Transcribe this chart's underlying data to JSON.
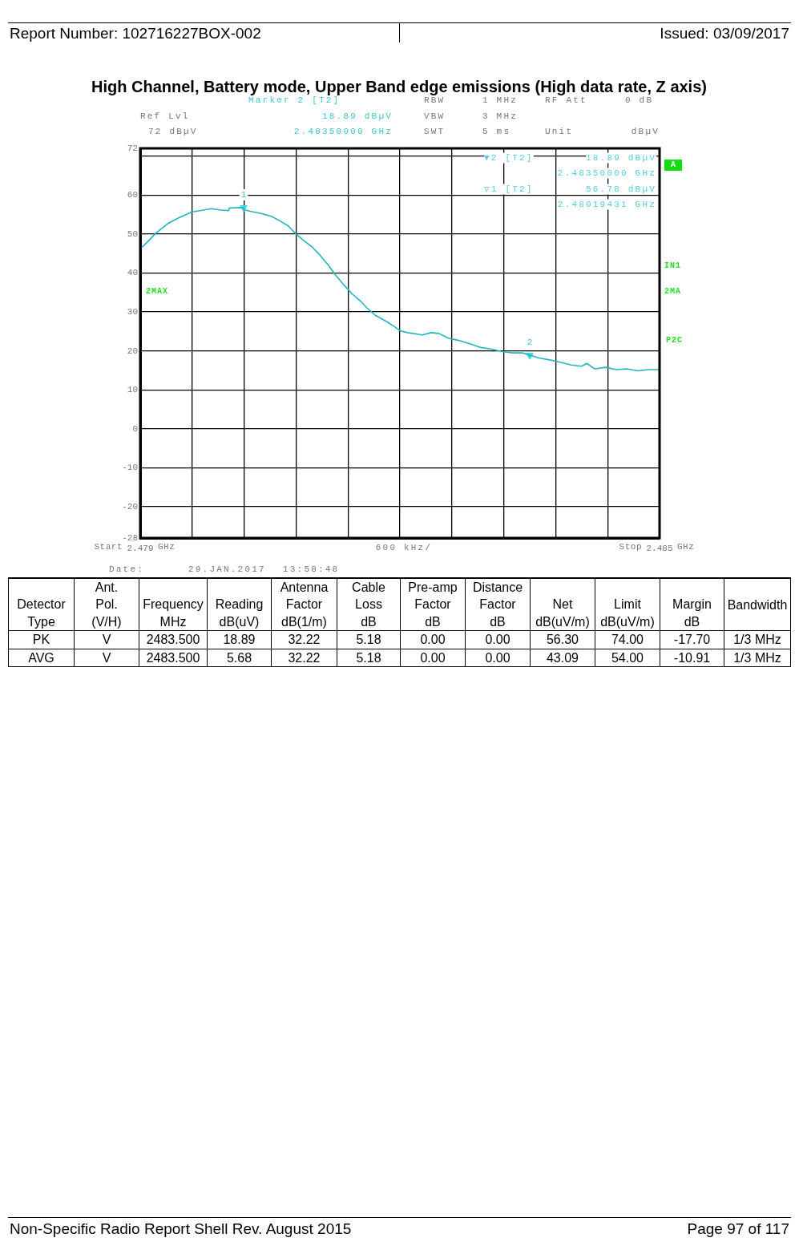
{
  "chart_data": [
    {
      "type": "line",
      "title": "High Channel, Battery mode, Upper Band edge emissions (High data rate, Z axis)",
      "xlabel": "600 kHz/",
      "xlim": [
        2.479,
        2.485
      ],
      "xticks": [
        2.479,
        {
          "value": 2.4796,
          "label": null
        },
        {
          "value": 2.4802,
          "label": null
        },
        {
          "value": 2.4808,
          "label": null
        },
        {
          "value": 2.4814,
          "label": null
        },
        {
          "value": 2.482,
          "label": null
        },
        {
          "value": 2.4826,
          "label": null
        },
        {
          "value": 2.4832,
          "label": null
        },
        {
          "value": 2.4838,
          "label": null
        },
        {
          "value": 2.4844,
          "label": null
        },
        2.485
      ],
      "ylim": [
        -28,
        72
      ],
      "yticks": [
        72,
        {
          "value": 70,
          "label": null
        },
        60,
        50,
        40,
        30,
        20,
        10,
        0,
        -10,
        -20,
        -28
      ],
      "grid": true,
      "series": [
        {
          "type": "line",
          "color": "#22b5bf",
          "x": [
            2.47901,
            2.47908,
            2.47917,
            2.47925,
            2.47932,
            2.47942,
            2.47951,
            2.4796,
            2.47969,
            2.47982,
            2.47991,
            2.48002,
            2.48003,
            2.48019,
            2.4802,
            2.48028,
            2.4804,
            2.48052,
            2.48062,
            2.48071,
            2.4808,
            2.48089,
            2.48099,
            2.48108,
            2.48117,
            2.48126,
            2.48135,
            2.48145,
            2.48154,
            2.48163,
            2.48172,
            2.48185,
            2.48194,
            2.482,
            2.48209,
            2.48226,
            2.48236,
            2.48245,
            2.48256,
            2.48268,
            2.4828,
            2.48293,
            2.48305,
            2.48317,
            2.4833,
            2.48342,
            2.4835,
            2.48361,
            2.48373,
            2.48385,
            2.48398,
            2.4841,
            2.48416,
            2.48425,
            2.48438,
            2.4845,
            2.48462,
            2.48475,
            2.48487,
            2.485
          ],
          "values": [
            46.4,
            47.9,
            50.0,
            51.5,
            52.7,
            53.9,
            54.8,
            55.7,
            56.0,
            56.5,
            56.2,
            56.0,
            56.7,
            56.8,
            56.2,
            55.8,
            55.3,
            54.5,
            53.3,
            52.1,
            50.0,
            48.3,
            46.6,
            44.5,
            42.1,
            39.4,
            37.0,
            34.6,
            32.9,
            30.8,
            29.1,
            27.5,
            26.2,
            25.2,
            24.7,
            24.1,
            24.7,
            24.5,
            23.3,
            22.7,
            21.9,
            20.9,
            20.5,
            19.9,
            19.5,
            19.5,
            18.9,
            18.2,
            17.7,
            17.1,
            16.4,
            16.1,
            16.8,
            15.4,
            15.8,
            15.2,
            15.4,
            14.9,
            15.2,
            15.2
          ]
        },
        {
          "type": "scatter",
          "color": "#3fd8e2",
          "marker": "triangle",
          "x": [
            2.48019431,
            2.4835
          ],
          "values": [
            56.78,
            18.89
          ]
        }
      ],
      "annotations": [
        "Report Number: 102716227BOX-002",
        "Issued: 03/09/2017",
        "Marker 2 [T2]",
        "RBW",
        "1 MHz",
        "RF Att",
        "0 dB",
        "Ref Lvl",
        "18.89 dBµV",
        "VBW",
        "3 MHz",
        "72 dBµV",
        "2.48350000 GHz",
        "SWT",
        "5 ms",
        "Unit",
        "dBµV",
        "▼2 [T2]",
        "18.89 dBµV",
        "2.48350000 GHz",
        "▽1 [T2]",
        "56.78 dBµV",
        "2.48019431 GHz",
        "A",
        "IN1",
        "2MAX",
        "2MA",
        "P2C",
        "Date:",
        "29.JAN.2017",
        "13:58:48",
        "Non-Specific Radio Report Shell Rev. August 2015",
        "Page 97 of 117",
        "Start",
        "GHz",
        "Stop",
        "GHz",
        {
          "text": "1",
          "x": 2.48019431,
          "y": 56.78
        },
        {
          "text": "2",
          "x": 2.4835,
          "y": 18.89
        }
      ]
    },
    {
      "type": "other",
      "annotations": [
        "Detector\nType",
        "Ant.\nPol.\n(V/H)",
        "Frequency\nMHz",
        "Reading\ndB(uV)",
        "Antenna\nFactor\ndB(1/m)",
        "Cable\nLoss\ndB",
        "Pre-amp\nFactor\ndB",
        "Distance\nFactor\ndB",
        "Net\ndB(uV/m)",
        "Limit\ndB(uV/m)",
        "Margin\ndB",
        "Bandwidth",
        "PK",
        "V",
        "2483.500",
        "18.89",
        "32.22",
        "5.18",
        "0.00",
        "0.00",
        "56.30",
        "74.00",
        "-17.70",
        "1/3 MHz",
        "AVG",
        "V",
        "2483.500",
        "5.68",
        "32.22",
        "5.18",
        "0.00",
        "0.00",
        "43.09",
        "54.00",
        "-10.91",
        "1/3 MHz"
      ]
    }
  ]
}
